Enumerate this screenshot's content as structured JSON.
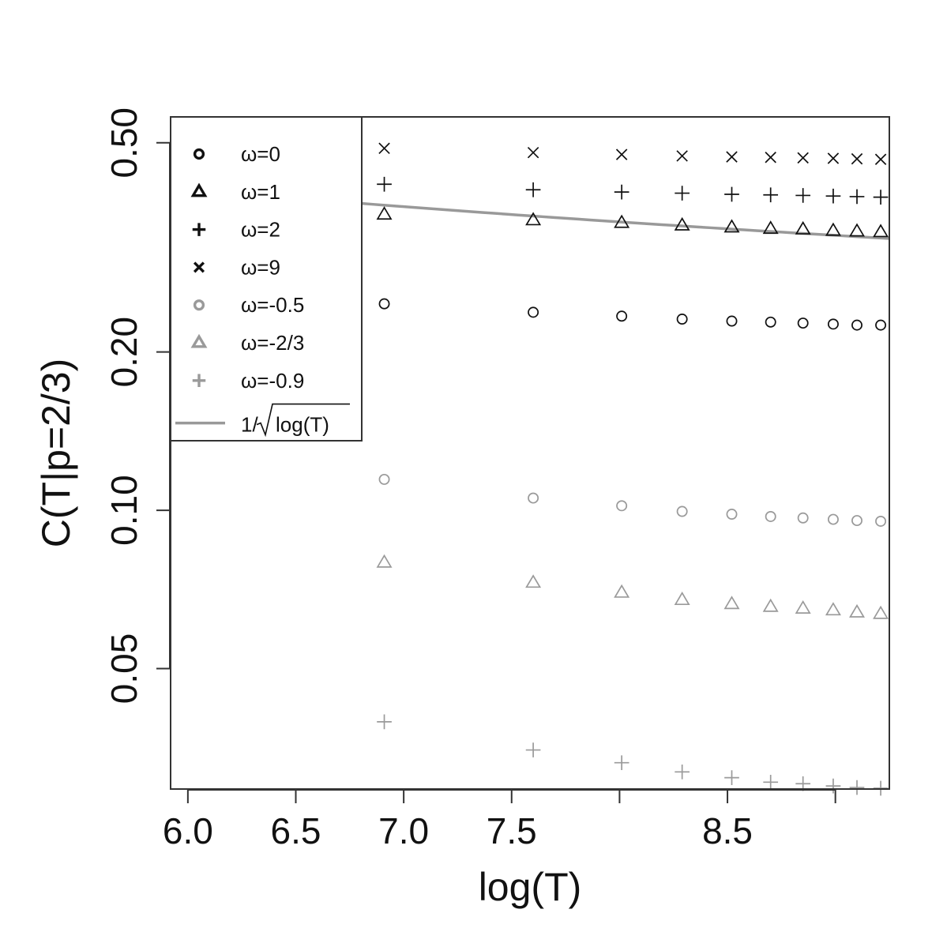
{
  "chart_data": {
    "type": "scatter",
    "title": "",
    "xlabel": "log(T)",
    "ylabel": "C(T|p=2/3)",
    "xlim": [
      5.92,
      9.25
    ],
    "ylim": [
      0.0295,
      0.56
    ],
    "y_scale": "log",
    "grid": false,
    "legend_position": "top-left",
    "x_ticks": [
      {
        "value": 6.0,
        "label": "6.0"
      },
      {
        "value": 6.5,
        "label": "6.5"
      },
      {
        "value": 7.0,
        "label": "7.0"
      },
      {
        "value": 7.5,
        "label": "7.5"
      },
      {
        "value": 8.0,
        "label": ""
      },
      {
        "value": 8.5,
        "label": "8.5"
      },
      {
        "value": 9.0,
        "label": ""
      }
    ],
    "y_ticks": [
      {
        "value": 0.05,
        "label": "0.05"
      },
      {
        "value": 0.1,
        "label": "0.10"
      },
      {
        "value": 0.2,
        "label": "0.20"
      },
      {
        "value": 0.5,
        "label": "0.50"
      }
    ],
    "x": [
      6.91,
      7.6,
      8.01,
      8.29,
      8.52,
      8.7,
      8.85,
      8.99,
      9.1,
      9.21
    ],
    "series": [
      {
        "name": "ω=0",
        "marker": "circle",
        "color": "#111111",
        "values": [
          0.247,
          0.238,
          0.234,
          0.231,
          0.229,
          0.228,
          0.227,
          0.226,
          0.225,
          0.225
        ]
      },
      {
        "name": "ω=1",
        "marker": "triangle",
        "color": "#111111",
        "values": [
          0.365,
          0.356,
          0.352,
          0.348,
          0.345,
          0.343,
          0.342,
          0.34,
          0.339,
          0.338
        ]
      },
      {
        "name": "ω=2",
        "marker": "plus",
        "color": "#111111",
        "values": [
          0.417,
          0.407,
          0.403,
          0.401,
          0.399,
          0.398,
          0.397,
          0.396,
          0.395,
          0.394
        ]
      },
      {
        "name": "ω=9",
        "marker": "cross",
        "color": "#111111",
        "values": [
          0.488,
          0.479,
          0.475,
          0.472,
          0.47,
          0.469,
          0.468,
          0.467,
          0.466,
          0.465
        ]
      },
      {
        "name": "ω=-0.5",
        "marker": "circle",
        "color": "#9a9a9a",
        "values": [
          0.1145,
          0.1055,
          0.102,
          0.0995,
          0.0983,
          0.0973,
          0.0967,
          0.0961,
          0.0956,
          0.0953
        ]
      },
      {
        "name": "ω=-2/3",
        "marker": "triangle",
        "color": "#9a9a9a",
        "values": [
          0.0795,
          0.0728,
          0.0697,
          0.0675,
          0.0663,
          0.0655,
          0.065,
          0.0645,
          0.0639,
          0.0635
        ]
      },
      {
        "name": "ω=-0.9",
        "marker": "plus",
        "color": "#9a9a9a",
        "values": [
          0.0396,
          0.035,
          0.0331,
          0.0318,
          0.031,
          0.0304,
          0.0302,
          0.0299,
          0.0297,
          0.0296
        ]
      }
    ],
    "reference_line": {
      "name": "1/√log(T)",
      "name_prefix": "1/",
      "name_radicand": "log(T)",
      "color": "#999999",
      "function": "1/sqrt(x)"
    }
  }
}
